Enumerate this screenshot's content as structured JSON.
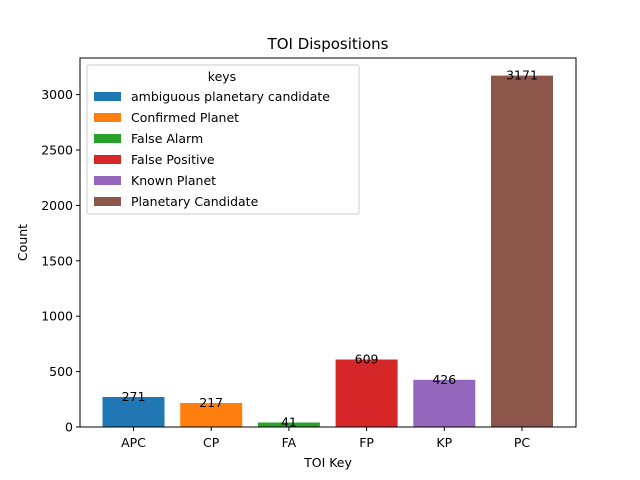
{
  "chart_data": {
    "type": "bar",
    "title": "TOI Dispositions",
    "xlabel": "TOI Key",
    "ylabel": "Count",
    "categories": [
      "APC",
      "CP",
      "FA",
      "FP",
      "KP",
      "PC"
    ],
    "values": [
      271,
      217,
      41,
      609,
      426,
      3171
    ],
    "value_labels": [
      "271",
      "217",
      "41",
      "609",
      "426",
      "3171"
    ],
    "colors": [
      "#1f77b4",
      "#ff7f0e",
      "#2ca02c",
      "#d62728",
      "#9467bd",
      "#8c564b"
    ],
    "ylim": [
      0,
      3330
    ],
    "yticks": [
      0,
      500,
      1000,
      1500,
      2000,
      2500,
      3000
    ],
    "ytick_labels": [
      "0",
      "500",
      "1000",
      "1500",
      "2000",
      "2500",
      "3000"
    ],
    "grid": false,
    "legend": {
      "title": "keys",
      "placement": "top-left",
      "entries": [
        "ambiguous planetary candidate",
        "Confirmed Planet",
        "False Alarm",
        "False Positive",
        "Known Planet",
        "Planetary Candidate"
      ]
    }
  }
}
